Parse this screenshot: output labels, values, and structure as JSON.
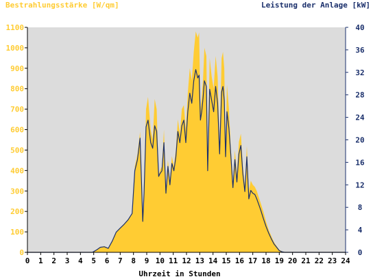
{
  "chart_data": {
    "type": "area",
    "left_axis_label": "Bestrahlungsstärke [W/qm]",
    "right_axis_label": "Leistung der Anlage [kW]",
    "xlabel": "Uhrzeit in Stunden",
    "xlim": [
      0,
      24
    ],
    "x_ticks": [
      "0",
      "1",
      "2",
      "3",
      "4",
      "5",
      "6",
      "7",
      "8",
      "9",
      "10",
      "11",
      "12",
      "13",
      "14",
      "15",
      "16",
      "17",
      "18",
      "19",
      "20",
      "21",
      "22",
      "23",
      "24"
    ],
    "left_ylim": [
      0,
      1100
    ],
    "left_ticks": [
      "0",
      "100",
      "200",
      "300",
      "400",
      "500",
      "600",
      "700",
      "800",
      "900",
      "1000",
      "1100"
    ],
    "right_ylim": [
      0,
      40
    ],
    "right_ticks": [
      "0",
      "4",
      "8",
      "12",
      "16",
      "20",
      "24",
      "28",
      "32",
      "36",
      "40"
    ],
    "grid": false,
    "colors": {
      "irradiance": "#ffcc33",
      "power": "#1a2f6b",
      "left_axis_text": "#ffcc33",
      "right_axis_text": "#1a2f6b",
      "plot_background": "#dcdcdc",
      "axis": "#000000"
    },
    "series": [
      {
        "key": "irradiance",
        "axis": "left",
        "x": [
          0,
          4.9,
          5.2,
          5.5,
          5.8,
          6.1,
          6.4,
          6.7,
          7.0,
          7.3,
          7.6,
          7.9,
          8.1,
          8.3,
          8.5,
          8.7,
          8.8,
          8.95,
          9.1,
          9.3,
          9.45,
          9.6,
          9.75,
          9.9,
          10.0,
          10.15,
          10.3,
          10.45,
          10.6,
          10.75,
          10.9,
          11.05,
          11.2,
          11.35,
          11.5,
          11.65,
          11.8,
          11.95,
          12.1,
          12.25,
          12.4,
          12.55,
          12.7,
          12.85,
          12.95,
          13.05,
          13.15,
          13.25,
          13.35,
          13.5,
          13.6,
          13.75,
          13.9,
          14.05,
          14.2,
          14.35,
          14.5,
          14.65,
          14.75,
          14.85,
          14.95,
          15.05,
          15.2,
          15.35,
          15.5,
          15.65,
          15.8,
          15.95,
          16.1,
          16.25,
          16.4,
          16.55,
          16.7,
          16.85,
          17.0,
          17.15,
          17.3,
          17.45,
          17.6,
          17.8,
          18.0,
          18.2,
          18.4,
          18.6,
          18.8,
          19.0,
          19.2,
          19.4,
          19.6,
          19.8,
          20.0,
          20.2,
          20.4,
          20.6,
          24
        ],
        "y": [
          0,
          0,
          10,
          25,
          30,
          20,
          55,
          100,
          120,
          140,
          160,
          190,
          420,
          480,
          590,
          150,
          300,
          700,
          760,
          600,
          550,
          750,
          700,
          380,
          400,
          420,
          600,
          300,
          450,
          350,
          470,
          420,
          500,
          650,
          580,
          700,
          720,
          600,
          780,
          900,
          840,
          980,
          1080,
          1050,
          1075,
          700,
          760,
          850,
          1000,
          960,
          420,
          950,
          860,
          800,
          960,
          860,
          520,
          950,
          980,
          900,
          500,
          820,
          700,
          500,
          340,
          500,
          380,
          540,
          580,
          420,
          320,
          520,
          300,
          350,
          330,
          320,
          300,
          270,
          240,
          200,
          150,
          110,
          80,
          50,
          30,
          12,
          5,
          0,
          0,
          0,
          0,
          0,
          0,
          0,
          0
        ],
        "name": ""
      },
      {
        "key": "power",
        "axis": "right",
        "x": [
          0,
          4.9,
          5.2,
          5.5,
          5.8,
          6.1,
          6.4,
          6.7,
          7.0,
          7.3,
          7.6,
          7.9,
          8.1,
          8.3,
          8.5,
          8.7,
          8.8,
          8.95,
          9.1,
          9.3,
          9.45,
          9.6,
          9.75,
          9.9,
          10.0,
          10.15,
          10.3,
          10.45,
          10.6,
          10.75,
          10.9,
          11.05,
          11.2,
          11.35,
          11.5,
          11.65,
          11.8,
          11.95,
          12.1,
          12.25,
          12.4,
          12.55,
          12.7,
          12.85,
          12.95,
          13.05,
          13.15,
          13.25,
          13.35,
          13.5,
          13.6,
          13.75,
          13.9,
          14.05,
          14.2,
          14.35,
          14.5,
          14.65,
          14.75,
          14.85,
          14.95,
          15.05,
          15.2,
          15.35,
          15.5,
          15.65,
          15.8,
          15.95,
          16.1,
          16.25,
          16.4,
          16.55,
          16.7,
          16.85,
          17.0,
          17.15,
          17.3,
          17.45,
          17.6,
          17.8,
          18.0,
          18.2,
          18.4,
          18.6,
          18.8,
          19.0,
          19.2,
          19.4,
          19.6,
          19.8,
          20.0,
          20.2,
          20.4,
          20.6,
          24
        ],
        "y": [
          0,
          0,
          0.4,
          0.9,
          1.0,
          0.7,
          2.0,
          3.6,
          4.3,
          5.0,
          5.8,
          6.9,
          14.5,
          16.5,
          20.3,
          5.5,
          10.5,
          22.3,
          23.5,
          19.5,
          18.5,
          22.5,
          21.5,
          13.5,
          14.0,
          14.5,
          19.5,
          10.5,
          15.3,
          12.0,
          15.8,
          14.5,
          17.0,
          21.5,
          19.5,
          22.5,
          23.5,
          19.5,
          25.0,
          28.3,
          26.5,
          30.5,
          32.5,
          31.0,
          31.5,
          23.5,
          25.0,
          27.5,
          30.5,
          29.5,
          14.5,
          29.0,
          27.0,
          25.0,
          29.5,
          26.5,
          17.5,
          28.5,
          29.5,
          27.0,
          17.0,
          25.0,
          22.0,
          17.0,
          11.5,
          16.5,
          12.5,
          17.5,
          19.0,
          14.0,
          10.8,
          17.0,
          9.5,
          11.0,
          10.5,
          10.3,
          9.5,
          8.5,
          7.5,
          6.0,
          4.6,
          3.4,
          2.4,
          1.5,
          0.9,
          0.3,
          0.1,
          0,
          0,
          0,
          0,
          0,
          0,
          0,
          0
        ],
        "name": ""
      }
    ]
  }
}
